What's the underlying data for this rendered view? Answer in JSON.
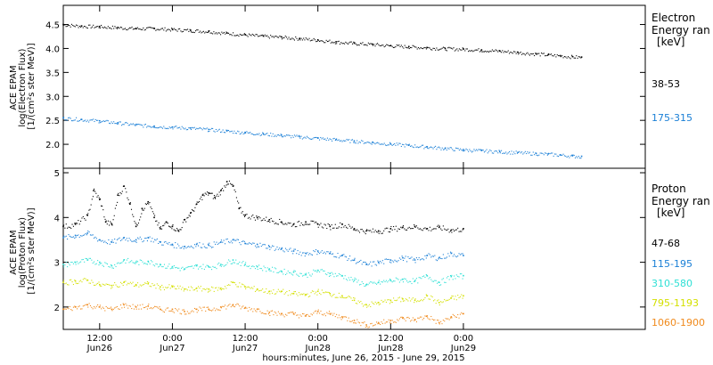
{
  "x_axis_title": "hours:minutes, June 26, 2015 - June 29, 2015",
  "chart_data": [
    {
      "type": "scatter",
      "panel": "electron",
      "ylabel_lines": [
        "ACE EPAM",
        "log(Electron Flux)",
        "[1/(cm²s ster MeV)]"
      ],
      "legend_title_lines": [
        "Electron",
        "Energy ran",
        "[keV]"
      ],
      "ylim": [
        1.5,
        4.9
      ],
      "yticks": [
        "2.0",
        "2.5",
        "3.0",
        "3.5",
        "4.0",
        "4.5"
      ],
      "series": [
        {
          "name": "38-53",
          "color": "#000000",
          "points": [
            [
              6,
              4.5
            ],
            [
              9,
              4.47
            ],
            [
              12,
              4.46
            ],
            [
              15,
              4.44
            ],
            [
              18,
              4.42
            ],
            [
              21,
              4.42
            ],
            [
              24,
              4.4
            ],
            [
              27,
              4.38
            ],
            [
              30,
              4.36
            ],
            [
              33,
              4.32
            ],
            [
              36,
              4.29
            ],
            [
              39,
              4.26
            ],
            [
              42,
              4.24
            ],
            [
              45,
              4.21
            ],
            [
              48,
              4.18
            ],
            [
              51,
              4.14
            ],
            [
              54,
              4.11
            ],
            [
              57,
              4.09
            ],
            [
              60,
              4.06
            ],
            [
              63,
              4.04
            ],
            [
              66,
              4.02
            ],
            [
              69,
              4.0
            ],
            [
              72,
              3.99
            ],
            [
              75,
              3.97
            ],
            [
              78,
              3.95
            ],
            [
              81,
              3.92
            ],
            [
              84,
              3.89
            ],
            [
              86,
              3.87
            ],
            [
              88,
              3.85
            ],
            [
              90,
              3.83
            ],
            [
              91.5,
              3.82
            ]
          ]
        },
        {
          "name": "175-315",
          "color": "#1a7fd6",
          "points": [
            [
              6,
              2.55
            ],
            [
              9,
              2.52
            ],
            [
              12,
              2.49
            ],
            [
              15,
              2.45
            ],
            [
              18,
              2.41
            ],
            [
              21,
              2.38
            ],
            [
              24,
              2.36
            ],
            [
              27,
              2.34
            ],
            [
              30,
              2.31
            ],
            [
              33,
              2.28
            ],
            [
              36,
              2.25
            ],
            [
              39,
              2.22
            ],
            [
              42,
              2.19
            ],
            [
              45,
              2.16
            ],
            [
              48,
              2.13
            ],
            [
              51,
              2.1
            ],
            [
              54,
              2.07
            ],
            [
              57,
              2.04
            ],
            [
              60,
              2.01
            ],
            [
              63,
              1.98
            ],
            [
              66,
              1.95
            ],
            [
              69,
              1.92
            ],
            [
              72,
              1.89
            ],
            [
              75,
              1.87
            ],
            [
              78,
              1.85
            ],
            [
              81,
              1.83
            ],
            [
              84,
              1.81
            ],
            [
              86,
              1.8
            ],
            [
              88,
              1.78
            ],
            [
              90,
              1.76
            ],
            [
              91.5,
              1.75
            ]
          ]
        }
      ]
    },
    {
      "type": "scatter",
      "panel": "proton",
      "ylabel_lines": [
        "ACE EPAM",
        "log(Proton Flux)",
        "[1/(cm²s ster MeV)]"
      ],
      "legend_title_lines": [
        "Proton",
        "Energy ran",
        "[keV]"
      ],
      "ylim": [
        1.5,
        5.1
      ],
      "yticks": [
        "2",
        "3",
        "4",
        "5"
      ],
      "xlim": [
        6,
        102
      ],
      "xticks": [
        {
          "x": 12,
          "top": "12:00",
          "bottom": "Jun26"
        },
        {
          "x": 24,
          "top": "0:00",
          "bottom": "Jun27"
        },
        {
          "x": 36,
          "top": "12:00",
          "bottom": "Jun27"
        },
        {
          "x": 48,
          "top": "0:00",
          "bottom": "Jun28"
        },
        {
          "x": 60,
          "top": "12:00",
          "bottom": "Jun28"
        },
        {
          "x": 72,
          "top": "0:00",
          "bottom": "Jun29"
        }
      ],
      "series": [
        {
          "name": "47-68",
          "color": "#000000",
          "points": [
            [
              6,
              3.8
            ],
            [
              8,
              3.85
            ],
            [
              10,
              4.05
            ],
            [
              11,
              4.6
            ],
            [
              12,
              4.4
            ],
            [
              13,
              3.9
            ],
            [
              14,
              3.85
            ],
            [
              15,
              4.5
            ],
            [
              16,
              4.7
            ],
            [
              17,
              4.3
            ],
            [
              18,
              3.8
            ],
            [
              19,
              4.2
            ],
            [
              20,
              4.35
            ],
            [
              21,
              4.0
            ],
            [
              22,
              3.75
            ],
            [
              23,
              3.9
            ],
            [
              24,
              3.8
            ],
            [
              25,
              3.7
            ],
            [
              26,
              3.95
            ],
            [
              27,
              4.1
            ],
            [
              28,
              4.3
            ],
            [
              29,
              4.5
            ],
            [
              30,
              4.55
            ],
            [
              31,
              4.45
            ],
            [
              32,
              4.6
            ],
            [
              33,
              4.8
            ],
            [
              34,
              4.7
            ],
            [
              35,
              4.2
            ],
            [
              36,
              4.05
            ],
            [
              38,
              4.0
            ],
            [
              40,
              3.95
            ],
            [
              42,
              3.9
            ],
            [
              44,
              3.85
            ],
            [
              46,
              3.9
            ],
            [
              48,
              3.85
            ],
            [
              50,
              3.8
            ],
            [
              52,
              3.85
            ],
            [
              54,
              3.75
            ],
            [
              56,
              3.7
            ],
            [
              58,
              3.7
            ],
            [
              60,
              3.75
            ],
            [
              62,
              3.78
            ],
            [
              64,
              3.8
            ],
            [
              66,
              3.75
            ],
            [
              68,
              3.78
            ],
            [
              70,
              3.72
            ],
            [
              72,
              3.75
            ]
          ]
        },
        {
          "name": "115-195",
          "color": "#1a7fd6",
          "points": [
            [
              6,
              3.55
            ],
            [
              8,
              3.6
            ],
            [
              10,
              3.65
            ],
            [
              12,
              3.5
            ],
            [
              14,
              3.45
            ],
            [
              16,
              3.55
            ],
            [
              18,
              3.5
            ],
            [
              20,
              3.55
            ],
            [
              22,
              3.45
            ],
            [
              24,
              3.4
            ],
            [
              26,
              3.35
            ],
            [
              28,
              3.4
            ],
            [
              30,
              3.38
            ],
            [
              32,
              3.45
            ],
            [
              34,
              3.5
            ],
            [
              36,
              3.42
            ],
            [
              38,
              3.4
            ],
            [
              40,
              3.35
            ],
            [
              42,
              3.3
            ],
            [
              44,
              3.25
            ],
            [
              46,
              3.2
            ],
            [
              48,
              3.25
            ],
            [
              50,
              3.2
            ],
            [
              52,
              3.15
            ],
            [
              54,
              3.05
            ],
            [
              56,
              2.95
            ],
            [
              58,
              3.0
            ],
            [
              60,
              3.05
            ],
            [
              62,
              3.1
            ],
            [
              64,
              3.05
            ],
            [
              66,
              3.15
            ],
            [
              68,
              3.1
            ],
            [
              70,
              3.2
            ],
            [
              72,
              3.15
            ]
          ]
        },
        {
          "name": "310-580",
          "color": "#2ee0d5",
          "points": [
            [
              6,
              2.95
            ],
            [
              8,
              3.0
            ],
            [
              10,
              3.05
            ],
            [
              12,
              3.0
            ],
            [
              14,
              2.92
            ],
            [
              16,
              3.05
            ],
            [
              18,
              3.0
            ],
            [
              20,
              3.02
            ],
            [
              22,
              2.95
            ],
            [
              24,
              2.9
            ],
            [
              26,
              2.85
            ],
            [
              28,
              2.92
            ],
            [
              30,
              2.9
            ],
            [
              32,
              2.95
            ],
            [
              34,
              3.05
            ],
            [
              36,
              2.95
            ],
            [
              38,
              2.9
            ],
            [
              40,
              2.85
            ],
            [
              42,
              2.8
            ],
            [
              44,
              2.78
            ],
            [
              46,
              2.72
            ],
            [
              48,
              2.82
            ],
            [
              50,
              2.75
            ],
            [
              52,
              2.7
            ],
            [
              54,
              2.6
            ],
            [
              56,
              2.5
            ],
            [
              58,
              2.55
            ],
            [
              60,
              2.6
            ],
            [
              62,
              2.62
            ],
            [
              64,
              2.58
            ],
            [
              66,
              2.7
            ],
            [
              68,
              2.55
            ],
            [
              70,
              2.68
            ],
            [
              72,
              2.7
            ]
          ]
        },
        {
          "name": "795-1193",
          "color": "#d4e000",
          "points": [
            [
              6,
              2.55
            ],
            [
              8,
              2.58
            ],
            [
              10,
              2.6
            ],
            [
              12,
              2.5
            ],
            [
              14,
              2.48
            ],
            [
              16,
              2.55
            ],
            [
              18,
              2.5
            ],
            [
              20,
              2.52
            ],
            [
              22,
              2.45
            ],
            [
              24,
              2.45
            ],
            [
              26,
              2.4
            ],
            [
              28,
              2.42
            ],
            [
              30,
              2.4
            ],
            [
              32,
              2.42
            ],
            [
              34,
              2.55
            ],
            [
              36,
              2.45
            ],
            [
              38,
              2.4
            ],
            [
              40,
              2.35
            ],
            [
              42,
              2.35
            ],
            [
              44,
              2.3
            ],
            [
              46,
              2.28
            ],
            [
              48,
              2.35
            ],
            [
              50,
              2.3
            ],
            [
              52,
              2.25
            ],
            [
              54,
              2.15
            ],
            [
              56,
              2.05
            ],
            [
              58,
              2.1
            ],
            [
              60,
              2.15
            ],
            [
              62,
              2.18
            ],
            [
              64,
              2.15
            ],
            [
              66,
              2.25
            ],
            [
              68,
              2.1
            ],
            [
              70,
              2.2
            ],
            [
              72,
              2.25
            ]
          ]
        },
        {
          "name": "1060-1900",
          "color": "#f08a1c",
          "points": [
            [
              6,
              1.95
            ],
            [
              8,
              2.0
            ],
            [
              10,
              2.05
            ],
            [
              12,
              2.0
            ],
            [
              14,
              1.95
            ],
            [
              16,
              2.05
            ],
            [
              18,
              2.0
            ],
            [
              20,
              2.02
            ],
            [
              22,
              1.95
            ],
            [
              24,
              1.95
            ],
            [
              26,
              1.9
            ],
            [
              28,
              1.95
            ],
            [
              30,
              1.95
            ],
            [
              32,
              2.0
            ],
            [
              34,
              2.05
            ],
            [
              36,
              1.98
            ],
            [
              38,
              1.95
            ],
            [
              40,
              1.88
            ],
            [
              42,
              1.85
            ],
            [
              44,
              1.85
            ],
            [
              46,
              1.8
            ],
            [
              48,
              1.9
            ],
            [
              50,
              1.85
            ],
            [
              52,
              1.78
            ],
            [
              54,
              1.7
            ],
            [
              56,
              1.6
            ],
            [
              58,
              1.65
            ],
            [
              60,
              1.7
            ],
            [
              62,
              1.75
            ],
            [
              64,
              1.72
            ],
            [
              66,
              1.8
            ],
            [
              68,
              1.65
            ],
            [
              70,
              1.78
            ],
            [
              72,
              1.85
            ]
          ]
        }
      ]
    }
  ]
}
